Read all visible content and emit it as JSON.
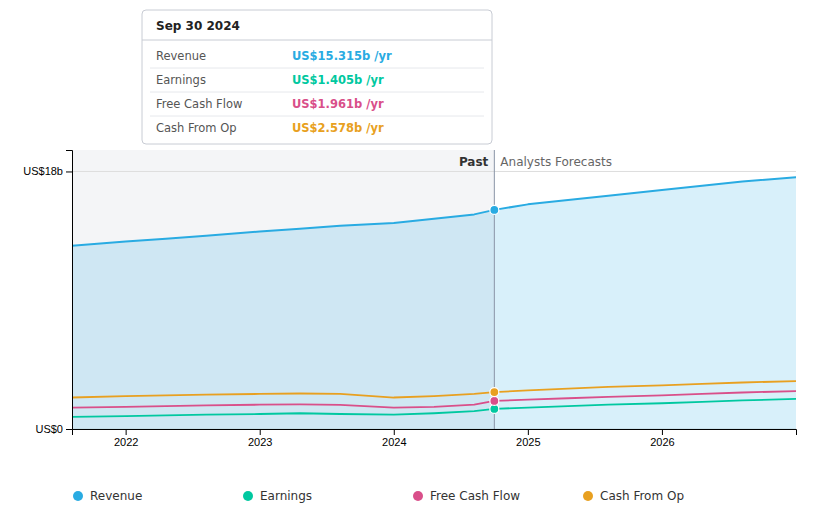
{
  "chart_data": {
    "type": "line",
    "x": [
      2021.6,
      2022.0,
      2022.3,
      2022.6,
      2023.0,
      2023.3,
      2023.6,
      2024.0,
      2024.3,
      2024.6,
      2024.75,
      2025.0,
      2025.3,
      2025.6,
      2026.0,
      2026.3,
      2026.6,
      2027.0
    ],
    "series": [
      {
        "name": "Revenue",
        "color": "#29abe2",
        "type": "area",
        "values": [
          12.8,
          13.1,
          13.3,
          13.5,
          13.8,
          14.0,
          14.2,
          14.4,
          14.7,
          15.0,
          15.315,
          15.7,
          16.0,
          16.3,
          16.7,
          17.0,
          17.3,
          17.6
        ],
        "value_labels": [
          null,
          null,
          null,
          null,
          null,
          null,
          null,
          null,
          null,
          null,
          "US$15.315b /yr",
          null,
          null,
          null,
          null,
          null,
          null,
          null
        ]
      },
      {
        "name": "Earnings",
        "color": "#00c8a0",
        "values": [
          0.85,
          0.9,
          0.95,
          1.0,
          1.05,
          1.1,
          1.05,
          1.0,
          1.1,
          1.25,
          1.405,
          1.5,
          1.6,
          1.7,
          1.8,
          1.9,
          2.0,
          2.1
        ],
        "value_labels": [
          null,
          null,
          null,
          null,
          null,
          null,
          null,
          null,
          null,
          null,
          "US$1.405b /yr",
          null,
          null,
          null,
          null,
          null,
          null,
          null
        ]
      },
      {
        "name": "Free Cash Flow",
        "color": "#d94f8a",
        "values": [
          1.5,
          1.55,
          1.6,
          1.65,
          1.7,
          1.72,
          1.68,
          1.5,
          1.55,
          1.7,
          1.961,
          2.05,
          2.15,
          2.25,
          2.35,
          2.45,
          2.55,
          2.65
        ],
        "value_labels": [
          null,
          null,
          null,
          null,
          null,
          null,
          null,
          null,
          null,
          null,
          "US$1.961b /yr",
          null,
          null,
          null,
          null,
          null,
          null,
          null
        ]
      },
      {
        "name": "Cash From Op",
        "color": "#e8a020",
        "values": [
          2.2,
          2.3,
          2.35,
          2.4,
          2.45,
          2.48,
          2.45,
          2.2,
          2.3,
          2.45,
          2.578,
          2.7,
          2.82,
          2.94,
          3.05,
          3.15,
          3.25,
          3.35
        ],
        "value_labels": [
          null,
          null,
          null,
          null,
          null,
          null,
          null,
          null,
          null,
          null,
          "US$2.578b /yr",
          null,
          null,
          null,
          null,
          null,
          null,
          null
        ]
      }
    ],
    "xlim": [
      2021.6,
      2027.0
    ],
    "xticks": [
      2022,
      2023,
      2024,
      2025,
      2026
    ],
    "ylim": [
      0,
      19.5
    ],
    "yticks": [
      {
        "value": 0,
        "label": "US$0"
      },
      {
        "value": 18,
        "label": "US$18b"
      }
    ],
    "grid": true,
    "legend": "bottom",
    "annotations": [
      {
        "text": "Past",
        "x": 2024.75
      },
      {
        "text": "Analysts Forecasts",
        "x": 2024.75
      },
      {
        "text": "Sep 30 2024",
        "x": 2024.75
      }
    ]
  }
}
